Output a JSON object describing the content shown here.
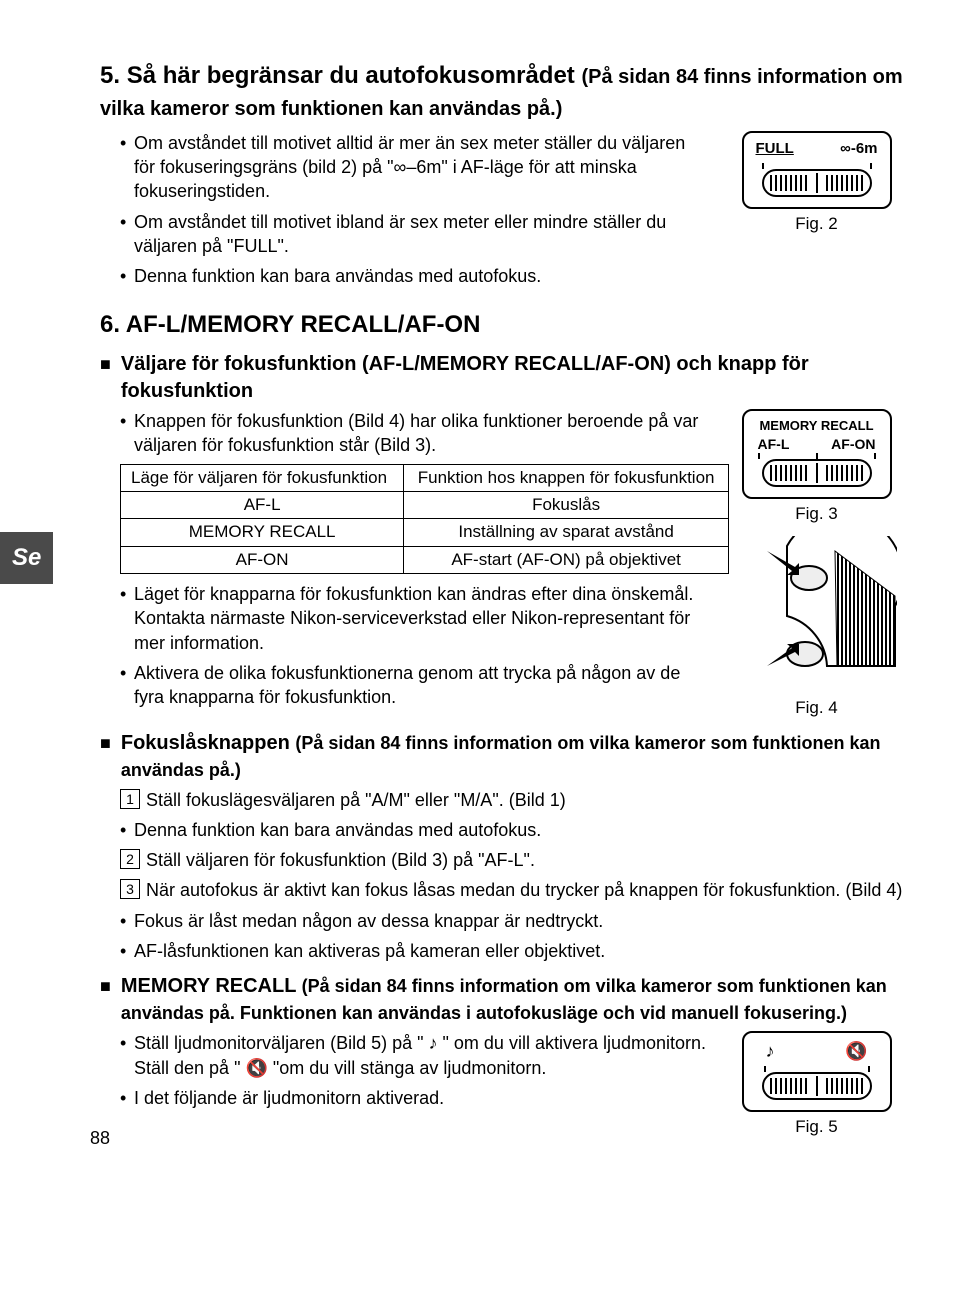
{
  "sideTab": "Se",
  "pageNumber": "88",
  "section5": {
    "num": "5.",
    "title": "Så här begränsar du autofokusområdet",
    "note": "(På sidan 84 finns information om vilka kameror som funktionen kan användas på.)",
    "bullets": [
      "Om avståndet till motivet alltid är mer än sex meter ställer du väljaren för fokuseringsgräns (bild 2) på \"∞–6m\" i AF-läge för att minska fokuseringstiden.",
      "Om avståndet till motivet ibland är sex meter eller mindre ställer du väljaren på \"FULL\".",
      "Denna funktion kan bara användas med autofokus."
    ],
    "fig2": {
      "caption": "Fig. 2",
      "leftLabel": "FULL",
      "rightLabel": "∞-6m"
    }
  },
  "section6": {
    "num": "6.",
    "title": "AF-L/MEMORY RECALL/AF-ON",
    "sub1": {
      "text": "Väljare för fokusfunktion (AF-L/MEMORY RECALL/AF-ON) och knapp för fokusfunktion",
      "bullets_top": [
        "Knappen för fokusfunktion (Bild 4) har olika funktioner beroende på var väljaren för fokusfunktion står (Bild 3)."
      ],
      "table": {
        "col1": "Läge för väljaren för fokusfunktion",
        "col2": "Funktion hos knappen för fokusfunktion",
        "rows": [
          [
            "AF-L",
            "Fokuslås"
          ],
          [
            "MEMORY RECALL",
            "Inställning av sparat avstånd"
          ],
          [
            "AF-ON",
            "AF-start (AF-ON) på objektivet"
          ]
        ]
      },
      "bullets_bottom": [
        "Läget för knapparna för fokusfunktion kan ändras efter dina önskemål. Kontakta närmaste Nikon-serviceverkstad eller Nikon-representant för mer information.",
        "Aktivera de olika fokusfunktionerna genom att trycka på någon av de fyra knapparna för fokusfunktion."
      ],
      "fig3": {
        "caption": "Fig. 3",
        "top": "MEMORY RECALL",
        "left": "AF-L",
        "right": "AF-ON"
      },
      "fig4": {
        "caption": "Fig. 4"
      }
    },
    "sub2": {
      "title": "Fokuslåsknappen",
      "note": "(På sidan 84 finns information om vilka kameror som funktionen kan användas på.)",
      "items": [
        {
          "type": "num",
          "n": "1",
          "text": "Ställ fokuslägesväljaren på \"A/M\" eller \"M/A\". (Bild 1)"
        },
        {
          "type": "bullet",
          "text": "Denna funktion kan bara användas med autofokus."
        },
        {
          "type": "num",
          "n": "2",
          "text": "Ställ väljaren för fokusfunktion (Bild 3) på \"AF-L\"."
        },
        {
          "type": "num",
          "n": "3",
          "text": "När autofokus är aktivt kan fokus låsas medan du trycker på knappen för fokusfunktion. (Bild 4)"
        },
        {
          "type": "bullet",
          "text": "Fokus är låst medan någon av dessa knappar är nedtryckt."
        },
        {
          "type": "bullet",
          "text": "AF-låsfunktionen kan aktiveras på kameran eller objektivet."
        }
      ]
    },
    "sub3": {
      "title": "MEMORY RECALL",
      "note": "(På sidan 84 finns information om vilka kameror som funktionen kan användas på. Funktionen kan användas i autofokusläge och vid manuell fokusering.)",
      "bullets": [
        "Ställ ljudmonitorväljaren (Bild 5) på \" ♪ \" om du vill aktivera ljudmonitorn. Ställ den på \" 🔇 \"om du vill stänga av ljudmonitorn.",
        "I det följande är ljudmonitorn aktiverad."
      ],
      "fig5": {
        "caption": "Fig. 5",
        "leftIcon": "♪",
        "rightIcon": "🔇"
      }
    }
  }
}
